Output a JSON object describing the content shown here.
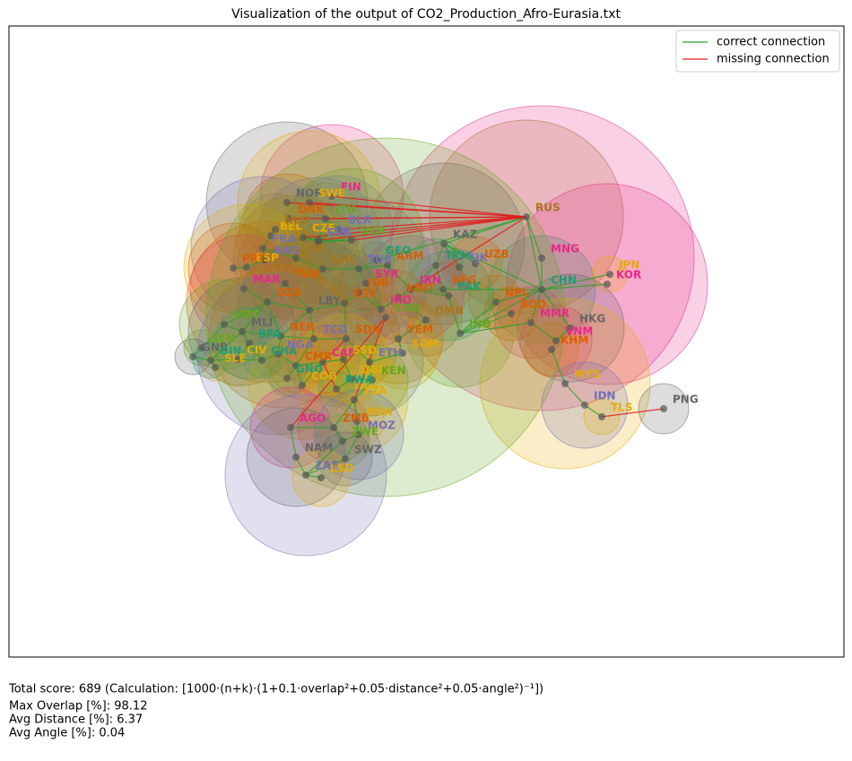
{
  "title": "Visualization of the output of CO2_Production_Afro-Eurasia.txt",
  "legend": [
    {
      "label": "correct connection",
      "color": "#2ca02c"
    },
    {
      "label": "missing connection",
      "color": "#e31a1c"
    }
  ],
  "nodes": [
    {
      "label": "RUS",
      "color": "#a6761d"
    },
    {
      "label": "MNG",
      "color": "#e7298a"
    },
    {
      "label": "CHN",
      "color": "#1b9e77"
    },
    {
      "label": "KOR",
      "color": "#e7298a"
    },
    {
      "label": "JPN",
      "color": "#e6ab02"
    },
    {
      "label": "IND",
      "color": "#66a61e"
    },
    {
      "label": "KAZ",
      "color": "#666666"
    },
    {
      "label": "MMR",
      "color": "#e7298a"
    },
    {
      "label": "HKG",
      "color": "#666666"
    },
    {
      "label": "VNM",
      "color": "#e7298a"
    },
    {
      "label": "KHM",
      "color": "#d95f02"
    },
    {
      "label": "MYS",
      "color": "#e6ab02"
    },
    {
      "label": "IDN",
      "color": "#7570b3"
    },
    {
      "label": "TLS",
      "color": "#e6ab02"
    },
    {
      "label": "PNG",
      "color": "#666666"
    },
    {
      "label": "NPL",
      "color": "#d95f02"
    },
    {
      "label": "BGD",
      "color": "#d95f02"
    },
    {
      "label": "AFG",
      "color": "#d95f02"
    },
    {
      "label": "PAK",
      "color": "#1b9e77"
    },
    {
      "label": "TKM",
      "color": "#1b9e77"
    },
    {
      "label": "UZB",
      "color": "#d95f02"
    },
    {
      "label": "TJK",
      "color": "#7570b3"
    },
    {
      "label": "IRN",
      "color": "#e7298a"
    },
    {
      "label": "IRQ",
      "color": "#e7298a"
    },
    {
      "label": "KWT",
      "color": "#d95f02"
    },
    {
      "label": "OMN",
      "color": "#a6761d"
    },
    {
      "label": "YEM",
      "color": "#d95f02"
    },
    {
      "label": "SOM",
      "color": "#e6ab02"
    },
    {
      "label": "ETH",
      "color": "#7570b3"
    },
    {
      "label": "SDN",
      "color": "#d95f02"
    },
    {
      "label": "TCD",
      "color": "#7570b3"
    },
    {
      "label": "EGY",
      "color": "#d95f02"
    },
    {
      "label": "TUR",
      "color": "#7570b3"
    },
    {
      "label": "ARM",
      "color": "#d95f02"
    },
    {
      "label": "GEO",
      "color": "#1b9e77"
    },
    {
      "label": "SYR",
      "color": "#e7298a"
    },
    {
      "label": "JOR",
      "color": "#d95f02"
    },
    {
      "label": "LTU",
      "color": "#66a61e"
    },
    {
      "label": "FIN",
      "color": "#e7298a"
    },
    {
      "label": "NOR",
      "color": "#666666"
    },
    {
      "label": "SWE",
      "color": "#e6ab02"
    },
    {
      "label": "DNK",
      "color": "#d95f02"
    },
    {
      "label": "BLR",
      "color": "#7570b3"
    },
    {
      "label": "UKR",
      "color": "#66a61e"
    },
    {
      "label": "POL",
      "color": "#7570b3"
    },
    {
      "label": "CZE",
      "color": "#e6ab02"
    },
    {
      "label": "SVK",
      "color": "#7570b3"
    },
    {
      "label": "BEL",
      "color": "#e6ab02"
    },
    {
      "label": "NLD",
      "color": "#a6761d"
    },
    {
      "label": "FRA",
      "color": "#7570b3"
    },
    {
      "label": "AND",
      "color": "#7570b3"
    },
    {
      "label": "ESP",
      "color": "#e6ab02"
    },
    {
      "label": "PRT",
      "color": "#d95f02"
    },
    {
      "label": "ITA",
      "color": "#a6761d"
    },
    {
      "label": "GRC",
      "color": "#a6761d"
    },
    {
      "label": "TUN",
      "color": "#d95f02"
    },
    {
      "label": "MAR",
      "color": "#e7298a"
    },
    {
      "label": "DZA",
      "color": "#d95f02"
    },
    {
      "label": "LBY",
      "color": "#666666"
    },
    {
      "label": "MRT",
      "color": "#66a61e"
    },
    {
      "label": "MLI",
      "color": "#666666"
    },
    {
      "label": "NER",
      "color": "#d95f02"
    },
    {
      "label": "SEN",
      "color": "#66a61e"
    },
    {
      "label": "GNB",
      "color": "#666666"
    },
    {
      "label": "GIN",
      "color": "#1b9e77"
    },
    {
      "label": "SLE",
      "color": "#e6ab02"
    },
    {
      "label": "CIV",
      "color": "#e6ab02"
    },
    {
      "label": "BFA",
      "color": "#1b9e77"
    },
    {
      "label": "GHA",
      "color": "#1b9e77"
    },
    {
      "label": "NGA",
      "color": "#7570b3"
    },
    {
      "label": "CAF",
      "color": "#e7298a"
    },
    {
      "label": "SSD",
      "color": "#e6ab02"
    },
    {
      "label": "CMR",
      "color": "#d95f02"
    },
    {
      "label": "GNQ",
      "color": "#1b9e77"
    },
    {
      "label": "COG",
      "color": "#e6ab02"
    },
    {
      "label": "COD",
      "color": "#66a61e"
    },
    {
      "label": "UGA",
      "color": "#e6ab02"
    },
    {
      "label": "KEN",
      "color": "#66a61e"
    },
    {
      "label": "RWA",
      "color": "#1b9e77"
    },
    {
      "label": "TZA",
      "color": "#e6ab02"
    },
    {
      "label": "AGO",
      "color": "#e7298a"
    },
    {
      "label": "ZMB",
      "color": "#d95f02"
    },
    {
      "label": "MWI",
      "color": "#e6ab02"
    },
    {
      "label": "MOZ",
      "color": "#7570b3"
    },
    {
      "label": "ZWE",
      "color": "#66a61e"
    },
    {
      "label": "NAM",
      "color": "#666666"
    },
    {
      "label": "SWZ",
      "color": "#666666"
    },
    {
      "label": "ZAF",
      "color": "#7570b3"
    },
    {
      "label": "LSO",
      "color": "#e6ab02"
    }
  ],
  "footer": [
    "Total score: 689  (Calculation: [1000·(n+k)·(1+0.1·overlap²+0.05·distance²+0.05·angle²)⁻¹])",
    "Max Overlap [%]: 98.12",
    "Avg Distance [%]: 6.37",
    "Avg Angle [%]: 0.04"
  ]
}
